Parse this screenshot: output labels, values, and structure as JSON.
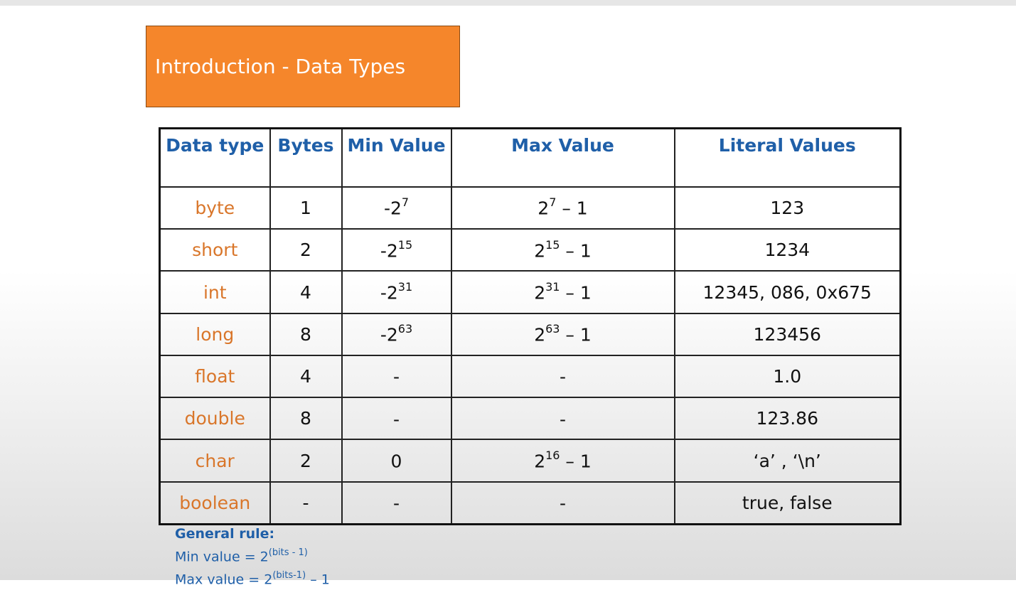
{
  "title": "Introduction - Data Types",
  "table": {
    "headers": [
      "Data type",
      "Bytes",
      "Min Value",
      "Max Value",
      "Literal Values"
    ],
    "rows": [
      {
        "type": "byte",
        "bytes": "1",
        "min": {
          "base": "-2",
          "exp": "7",
          "suffix": ""
        },
        "max": {
          "base": "2",
          "exp": "7",
          "suffix": " – 1"
        },
        "literal": "123"
      },
      {
        "type": "short",
        "bytes": "2",
        "min": {
          "base": "-2",
          "exp": "15",
          "suffix": ""
        },
        "max": {
          "base": "2",
          "exp": "15",
          "suffix": " – 1"
        },
        "literal": "1234"
      },
      {
        "type": "int",
        "bytes": "4",
        "min": {
          "base": "-2",
          "exp": "31",
          "suffix": ""
        },
        "max": {
          "base": "2",
          "exp": "31",
          "suffix": " – 1"
        },
        "literal": "12345, 086, 0x675"
      },
      {
        "type": "long",
        "bytes": "8",
        "min": {
          "base": "-2",
          "exp": "63",
          "suffix": ""
        },
        "max": {
          "base": "2",
          "exp": "63",
          "suffix": " – 1"
        },
        "literal": "123456"
      },
      {
        "type": "float",
        "bytes": "4",
        "min": {
          "base": "-",
          "exp": "",
          "suffix": ""
        },
        "max": {
          "base": "-",
          "exp": "",
          "suffix": ""
        },
        "literal": "1.0"
      },
      {
        "type": "double",
        "bytes": "8",
        "min": {
          "base": "-",
          "exp": "",
          "suffix": ""
        },
        "max": {
          "base": "-",
          "exp": "",
          "suffix": ""
        },
        "literal": "123.86"
      },
      {
        "type": "char",
        "bytes": "2",
        "min": {
          "base": "0",
          "exp": "",
          "suffix": ""
        },
        "max": {
          "base": "2",
          "exp": "16",
          "suffix": " – 1"
        },
        "literal": "‘a’ , ‘\\n’"
      },
      {
        "type": "boolean",
        "bytes": "-",
        "min": {
          "base": "-",
          "exp": "",
          "suffix": ""
        },
        "max": {
          "base": "-",
          "exp": "",
          "suffix": ""
        },
        "literal": "true, false"
      }
    ]
  },
  "general_rule": {
    "title": "General rule:",
    "min_line": {
      "prefix": "Min value = 2",
      "exp": "(bits - 1)",
      "suffix": ""
    },
    "max_line": {
      "prefix": "Max value = 2",
      "exp": "(bits-1)",
      "suffix": " – 1"
    }
  },
  "colors": {
    "title_bg": "#f5862b",
    "header_text": "#1f5fa8",
    "type_text": "#d9762a"
  }
}
